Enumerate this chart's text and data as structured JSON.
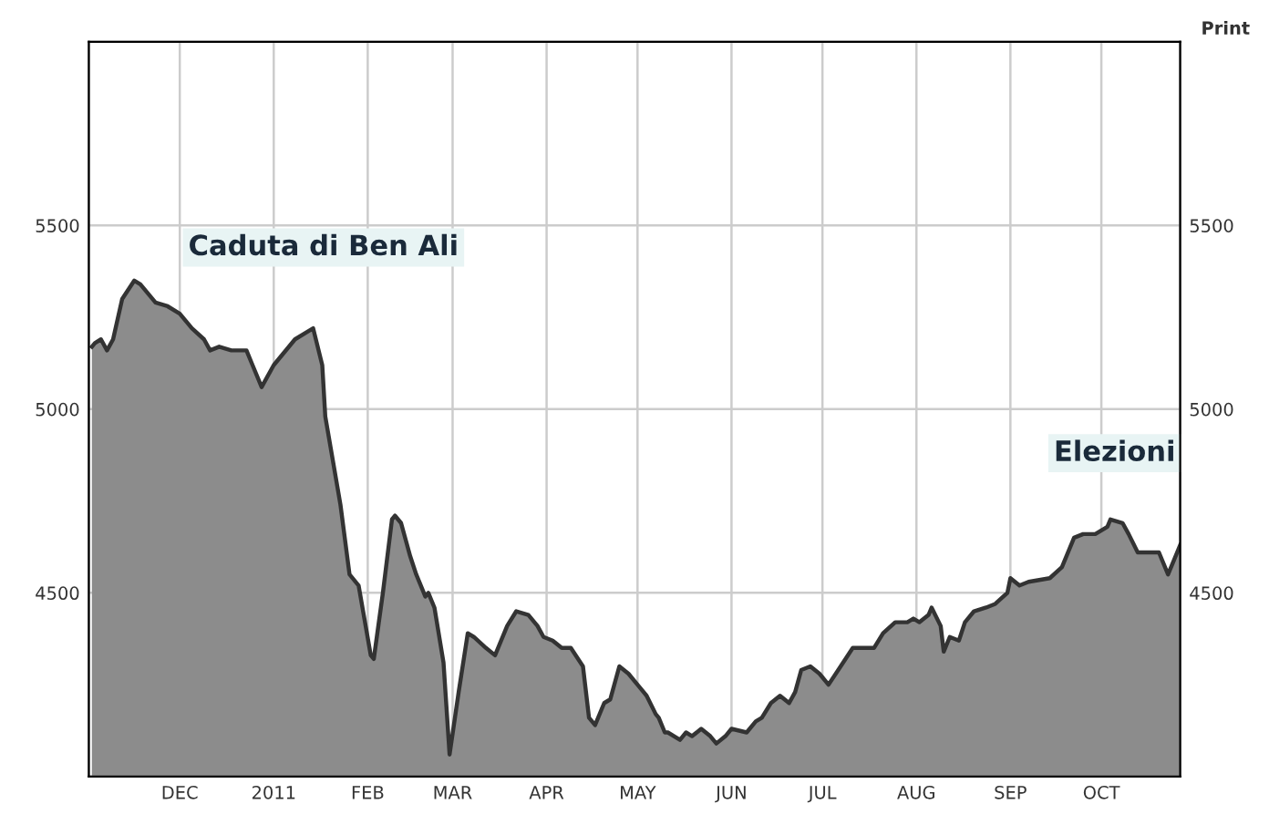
{
  "chart_data": {
    "type": "area",
    "x": [
      "2010-11-02",
      "2010-11-03",
      "2010-11-05",
      "2010-11-07",
      "2010-11-09",
      "2010-11-12",
      "2010-11-16",
      "2010-11-18",
      "2010-11-21",
      "2010-11-23",
      "2010-11-27",
      "2010-12-01",
      "2010-12-05",
      "2010-12-09",
      "2010-12-11",
      "2010-12-14",
      "2010-12-18",
      "2010-12-23",
      "2010-12-25",
      "2010-12-28",
      "2011-01-01",
      "2011-01-08",
      "2011-01-12",
      "2011-01-14",
      "2011-01-17",
      "2011-01-18",
      "2011-01-23",
      "2011-01-26",
      "2011-01-29",
      "2011-02-02",
      "2011-02-03",
      "2011-02-06",
      "2011-02-09",
      "2011-02-10",
      "2011-02-12",
      "2011-02-15",
      "2011-02-17",
      "2011-02-20",
      "2011-02-21",
      "2011-02-23",
      "2011-02-26",
      "2011-02-28",
      "2011-03-03",
      "2011-03-06",
      "2011-03-08",
      "2011-03-12",
      "2011-03-15",
      "2011-03-19",
      "2011-03-22",
      "2011-03-26",
      "2011-03-29",
      "2011-03-31",
      "2011-04-03",
      "2011-04-06",
      "2011-04-09",
      "2011-04-13",
      "2011-04-15",
      "2011-04-17",
      "2011-04-20",
      "2011-04-22",
      "2011-04-25",
      "2011-04-28",
      "2011-05-01",
      "2011-05-04",
      "2011-05-07",
      "2011-05-08",
      "2011-05-10",
      "2011-05-11",
      "2011-05-15",
      "2011-05-17",
      "2011-05-19",
      "2011-05-22",
      "2011-05-25",
      "2011-05-27",
      "2011-05-30",
      "2011-06-01",
      "2011-06-06",
      "2011-06-09",
      "2011-06-11",
      "2011-06-14",
      "2011-06-17",
      "2011-06-20",
      "2011-06-22",
      "2011-06-24",
      "2011-06-27",
      "2011-06-30",
      "2011-07-03",
      "2011-07-07",
      "2011-07-11",
      "2011-07-14",
      "2011-07-18",
      "2011-07-21",
      "2011-07-25",
      "2011-07-29",
      "2011-07-31",
      "2011-08-02",
      "2011-08-05",
      "2011-08-06",
      "2011-08-09",
      "2011-08-10",
      "2011-08-12",
      "2011-08-15",
      "2011-08-17",
      "2011-08-20",
      "2011-08-24",
      "2011-08-27",
      "2011-08-31",
      "2011-09-01",
      "2011-09-04",
      "2011-09-07",
      "2011-09-14",
      "2011-09-18",
      "2011-09-22",
      "2011-09-25",
      "2011-09-29",
      "2011-10-03",
      "2011-10-04",
      "2011-10-08",
      "2011-10-10",
      "2011-10-13",
      "2011-10-16",
      "2011-10-20",
      "2011-10-23",
      "2011-10-25",
      "2011-10-27"
    ],
    "series": [
      {
        "color": "#8c8c8c",
        "values": [
          5170,
          5180,
          5190,
          5160,
          5190,
          5300,
          5350,
          5340,
          5310,
          5290,
          5280,
          5260,
          5220,
          5190,
          5160,
          5170,
          5160,
          5160,
          5120,
          5060,
          5120,
          5190,
          5210,
          5220,
          5120,
          4980,
          4740,
          4550,
          4520,
          4330,
          4320,
          4500,
          4700,
          4710,
          4690,
          4600,
          4550,
          4490,
          4500,
          4460,
          4310,
          4060,
          4230,
          4390,
          4380,
          4350,
          4330,
          4410,
          4450,
          4440,
          4410,
          4380,
          4370,
          4350,
          4350,
          4300,
          4160,
          4140,
          4200,
          4210,
          4300,
          4280,
          4250,
          4220,
          4170,
          4160,
          4120,
          4120,
          4100,
          4120,
          4110,
          4130,
          4110,
          4090,
          4110,
          4130,
          4120,
          4150,
          4160,
          4200,
          4220,
          4200,
          4230,
          4290,
          4300,
          4280,
          4250,
          4300,
          4350,
          4350,
          4350,
          4390,
          4420,
          4420,
          4430,
          4420,
          4440,
          4460,
          4410,
          4340,
          4380,
          4370,
          4420,
          4450,
          4460,
          4470,
          4500,
          4540,
          4520,
          4530,
          4540,
          4570,
          4650,
          4660,
          4660,
          4680,
          4700,
          4690,
          4660,
          4610,
          4610,
          4610,
          4550,
          4590,
          4630
        ]
      }
    ],
    "xlim": [
      "2010-11-01",
      "2011-10-27"
    ],
    "xticks": [
      {
        "value": "2010-12-01",
        "label": "DEC"
      },
      {
        "value": "2011-01-01",
        "label": "2011"
      },
      {
        "value": "2011-02-01",
        "label": "FEB"
      },
      {
        "value": "2011-03-01",
        "label": "MAR"
      },
      {
        "value": "2011-04-01",
        "label": "APR"
      },
      {
        "value": "2011-05-01",
        "label": "MAY"
      },
      {
        "value": "2011-06-01",
        "label": "JUN"
      },
      {
        "value": "2011-07-01",
        "label": "JUL"
      },
      {
        "value": "2011-08-01",
        "label": "AUG"
      },
      {
        "value": "2011-09-01",
        "label": "SEP"
      },
      {
        "value": "2011-10-01",
        "label": "OCT"
      }
    ],
    "ylim": [
      4000,
      6000
    ],
    "yticks": [
      4500,
      5000,
      5500
    ],
    "y2lim": [
      4000,
      6000
    ],
    "y2ticks": [
      4500,
      5000,
      5500
    ],
    "grid": true,
    "annotations": [
      "Caduta di Ben Ali",
      "Elezioni",
      "Print"
    ]
  }
}
